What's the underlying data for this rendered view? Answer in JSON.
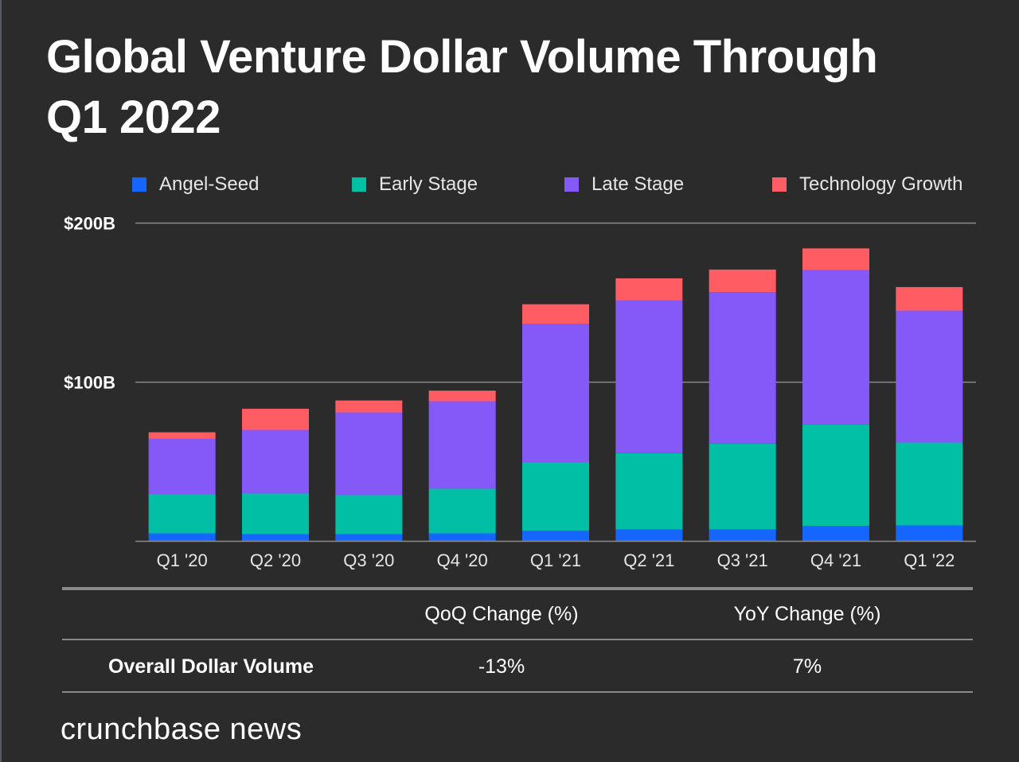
{
  "title": "Global Venture Dollar Volume Through Q1 2022",
  "title_lines": [
    "Global Venture Dollar Volume Through",
    "Q1 2022"
  ],
  "colors": {
    "background": "#2b2b2b",
    "angel_seed": "#1565ff",
    "early_stage": "#00bfa5",
    "late_stage": "#8559f8",
    "technology_growth": "#ff5c63",
    "gridline": "#8a8a8a"
  },
  "chart_data": {
    "type": "bar",
    "stacked": true,
    "title": "Global Venture Dollar Volume Through Q1 2022",
    "xlabel": "",
    "ylabel": "",
    "categories": [
      "Q1 '20",
      "Q2 '20",
      "Q3 '20",
      "Q4 '20",
      "Q1 '21",
      "Q2 '21",
      "Q3 '21",
      "Q4 '21",
      "Q1 '22"
    ],
    "series": [
      {
        "name": "Angel-Seed",
        "color": "#1565ff",
        "values": [
          5,
          4.5,
          4.5,
          5,
          6.7,
          7.5,
          7.5,
          9.7,
          10
        ]
      },
      {
        "name": "Early Stage",
        "color": "#00bfa5",
        "values": [
          24.5,
          25.5,
          24.5,
          28,
          42.8,
          47.8,
          53.8,
          63.7,
          52
        ]
      },
      {
        "name": "Late Stage",
        "color": "#8559f8",
        "values": [
          35,
          40,
          52,
          55,
          87.2,
          96,
          95.3,
          97,
          83
        ]
      },
      {
        "name": "Technology Growth",
        "color": "#ff5c63",
        "values": [
          4,
          13.3,
          7.5,
          6.7,
          12.3,
          14,
          14.2,
          13.7,
          14.8
        ]
      }
    ],
    "units": "USD billions",
    "ylim": [
      0,
      200
    ],
    "yticks": [
      {
        "value": 100,
        "label": "$100B"
      },
      {
        "value": 200,
        "label": "$200B"
      }
    ],
    "grid": true,
    "legend_position": "top"
  },
  "summary_table": {
    "headers": [
      "",
      "QoQ Change (%)",
      "YoY Change (%)"
    ],
    "rows": [
      {
        "label": "Overall Dollar Volume",
        "qoq": "-13%",
        "yoy": "7%"
      }
    ]
  },
  "brand": "crunchbase news"
}
